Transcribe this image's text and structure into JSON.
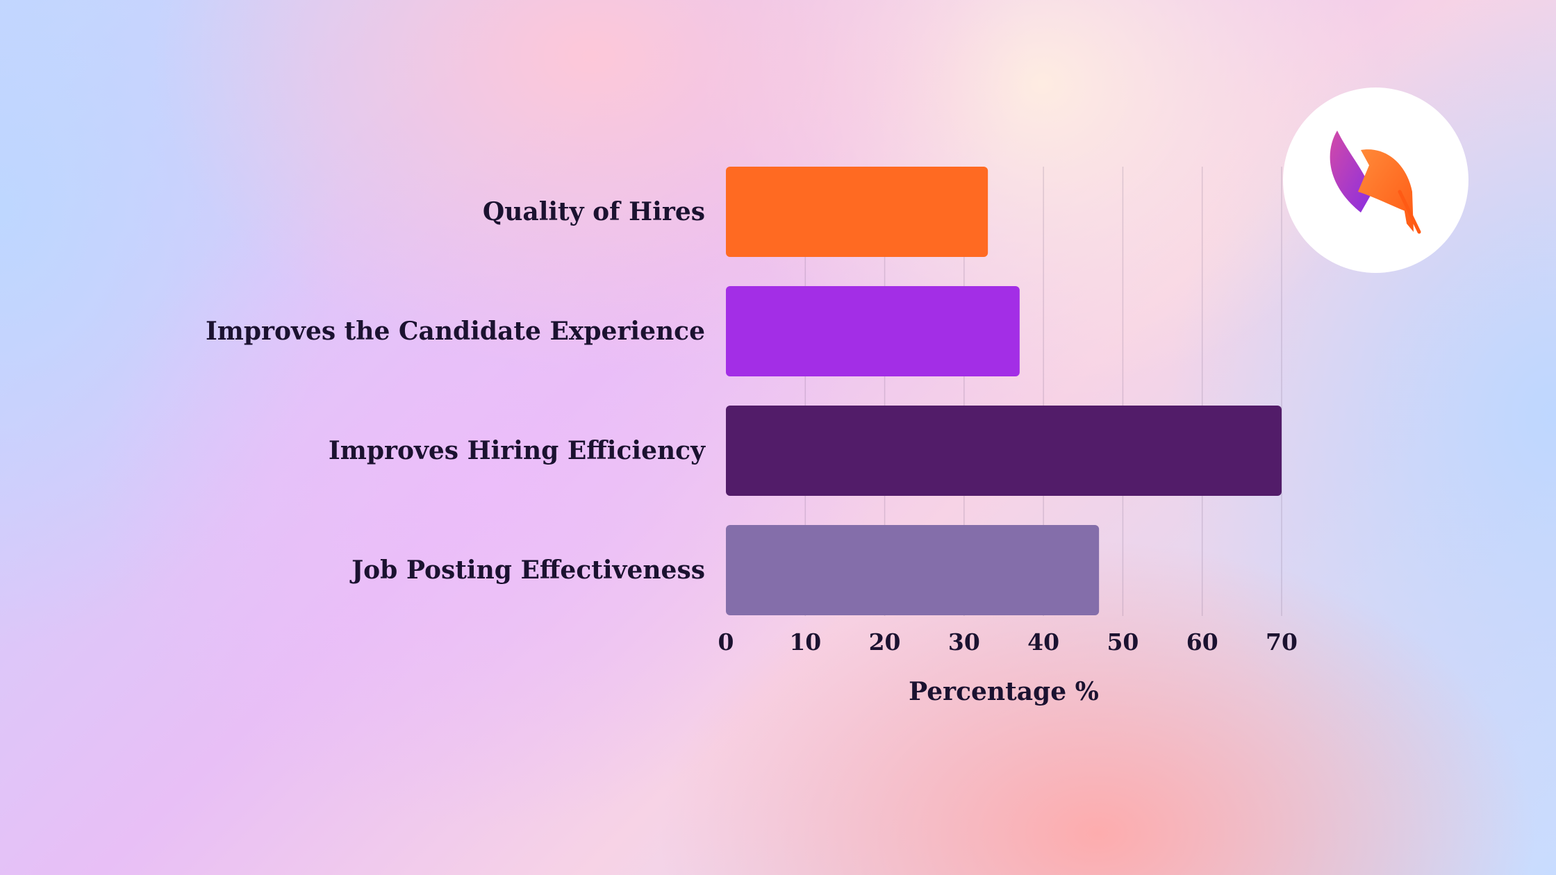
{
  "chart_data": {
    "type": "bar",
    "orientation": "horizontal",
    "categories": [
      "Quality of Hires",
      "Improves the Candidate Experience",
      "Improves Hiring Efficiency",
      "Job Posting Effectiveness"
    ],
    "values": [
      33,
      37,
      70,
      47
    ],
    "colors": [
      "#ff6a22",
      "#a32ee6",
      "#521c69",
      "#846eaa"
    ],
    "xlabel": "Percentage %",
    "xlim": [
      0,
      70
    ],
    "xticks": [
      0,
      10,
      20,
      30,
      40,
      50,
      60,
      70
    ],
    "grid": true
  },
  "logo": {
    "icon": "feather-logo-icon",
    "colors": [
      "#ff6a22",
      "#a32ee6"
    ]
  }
}
